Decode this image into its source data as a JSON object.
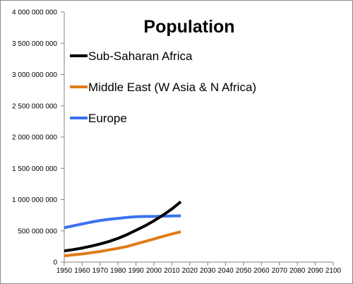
{
  "chart_data": {
    "type": "line",
    "title": "Population",
    "xlabel": "",
    "ylabel": "",
    "xlim": [
      1950,
      2100
    ],
    "ylim": [
      0,
      4000000000
    ],
    "x_ticks": [
      "1950",
      "1960",
      "1970",
      "1980",
      "1990",
      "2000",
      "2010",
      "2020",
      "2030",
      "2040",
      "2050",
      "2060",
      "2070",
      "2080",
      "2090",
      "2100"
    ],
    "y_ticks": [
      "0",
      "500 000 000",
      "1 000 000 000",
      "1 500 000 000",
      "2 000 000 000",
      "2 500 000 000",
      "3 000 000 000",
      "3 500 000 000",
      "4 000 000 000"
    ],
    "grid": false,
    "legend_position": "top-left",
    "x": [
      1950,
      1955,
      1960,
      1965,
      1970,
      1975,
      1980,
      1985,
      1990,
      1995,
      2000,
      2005,
      2010,
      2015
    ],
    "series": [
      {
        "name": "Sub-Saharan Africa",
        "color": "#000000",
        "values": [
          180000000,
          200000000,
          225000000,
          255000000,
          290000000,
          330000000,
          380000000,
          440000000,
          510000000,
          580000000,
          660000000,
          750000000,
          850000000,
          965000000
        ]
      },
      {
        "name": "Middle East (W Asia & N Africa)",
        "color": "#e07b17",
        "values": [
          100000000,
          115000000,
          130000000,
          150000000,
          170000000,
          195000000,
          220000000,
          250000000,
          290000000,
          330000000,
          370000000,
          410000000,
          450000000,
          485000000
        ]
      },
      {
        "name": "Europe",
        "color": "#3a72f0",
        "values": [
          550000000,
          580000000,
          610000000,
          640000000,
          665000000,
          685000000,
          700000000,
          715000000,
          725000000,
          730000000,
          730000000,
          735000000,
          738000000,
          740000000
        ]
      }
    ]
  }
}
